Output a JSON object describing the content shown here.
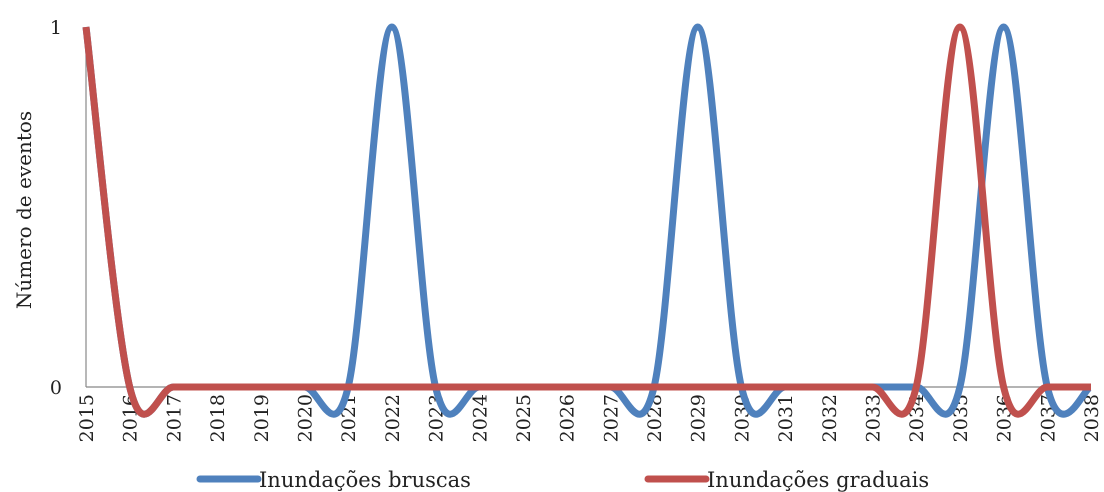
{
  "chart_data": {
    "type": "line",
    "smooth": true,
    "categories": [
      "2015",
      "2016",
      "2017",
      "2018",
      "2019",
      "2020",
      "2021",
      "2022",
      "2023",
      "2024",
      "2025",
      "2026",
      "2027",
      "2028",
      "2029",
      "2030",
      "2031",
      "2032",
      "2033",
      "2034",
      "2035",
      "2036",
      "2037",
      "2038"
    ],
    "series": [
      {
        "name": "Inundações bruscas",
        "color": "#4F81BD",
        "values": [
          1,
          0,
          0,
          0,
          0,
          0,
          0,
          1,
          0,
          0,
          0,
          0,
          0,
          0,
          1,
          0,
          0,
          0,
          0,
          0,
          0,
          1,
          0,
          0
        ]
      },
      {
        "name": "Inundações graduais",
        "color": "#C0504D",
        "values": [
          1,
          0,
          0,
          0,
          0,
          0,
          0,
          0,
          0,
          0,
          0,
          0,
          0,
          0,
          0,
          0,
          0,
          0,
          0,
          0,
          1,
          0,
          0,
          0
        ]
      }
    ],
    "title": "",
    "xlabel": "",
    "ylabel": "Número de eventos",
    "ylim": [
      0,
      1
    ],
    "yticks": [
      "0",
      "1"
    ],
    "grid": false,
    "legend_position": "bottom"
  }
}
